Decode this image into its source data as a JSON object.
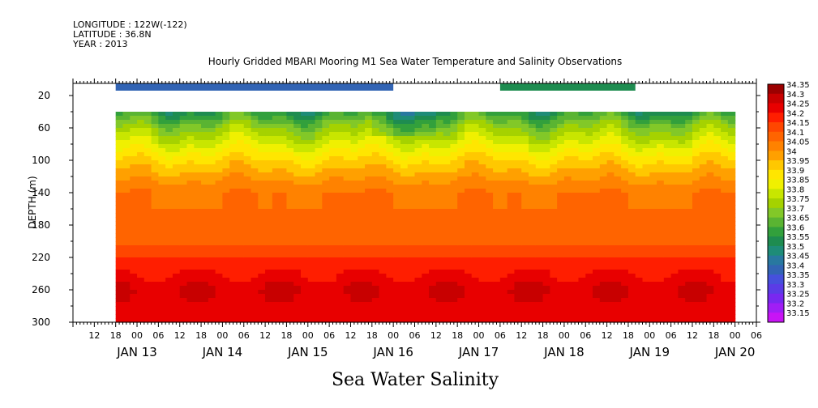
{
  "header": {
    "longitude": "LONGITUDE : 122W(-122)",
    "latitude": "LATITUDE : 36.8N",
    "year": "YEAR : 2013"
  },
  "chart_data": {
    "type": "heatmap",
    "title": "Hourly Gridded MBARI Mooring M1 Sea Water Temperature and Salinity Observations",
    "xlabel": "Sea Water Salinity",
    "ylabel": "DEPTH (m)",
    "yticks": [
      20,
      60,
      100,
      140,
      180,
      220,
      260,
      300
    ],
    "ylim": [
      300,
      5
    ],
    "x_hour_ticks": [
      "12",
      "18",
      "00",
      "06",
      "12",
      "18",
      "00",
      "06",
      "12",
      "18",
      "00",
      "06",
      "12",
      "18",
      "00",
      "06",
      "12",
      "18",
      "00",
      "06",
      "12",
      "18",
      "00",
      "06",
      "12",
      "18",
      "00",
      "06",
      "12",
      "18",
      "00",
      "06"
    ],
    "date_labels": [
      "JAN 13",
      "JAN 14",
      "JAN 15",
      "JAN 16",
      "JAN 17",
      "JAN 18",
      "JAN 19",
      "JAN 20"
    ],
    "colorbar": {
      "levels": [
        "34.35",
        "34.3",
        "34.25",
        "34.2",
        "34.15",
        "34.1",
        "34.05",
        "34",
        "33.95",
        "33.9",
        "33.85",
        "33.8",
        "33.75",
        "33.7",
        "33.65",
        "33.6",
        "33.55",
        "33.5",
        "33.45",
        "33.4",
        "33.35",
        "33.3",
        "33.25",
        "33.2",
        "33.15"
      ],
      "colors": [
        "#9b0000",
        "#c80000",
        "#e80000",
        "#ff1e00",
        "#ff4600",
        "#ff6400",
        "#ff8200",
        "#ffa000",
        "#ffc800",
        "#ffe600",
        "#f0f000",
        "#c8e600",
        "#a5d200",
        "#82c828",
        "#5ab432",
        "#32a03c",
        "#1e8c50",
        "#1e8c78",
        "#2878a0",
        "#3264b4",
        "#4650dc",
        "#5a3ce6",
        "#7828f0",
        "#a01ef5",
        "#c814f5"
      ]
    },
    "surface_bars": [
      {
        "x_range_hours": [
          6,
          84
        ],
        "value": 33.35
      },
      {
        "x_range_hours": [
          114,
          152
        ],
        "value": 33.5
      }
    ],
    "profile": {
      "depth_m": [
        40,
        60,
        80,
        100,
        120,
        140,
        160,
        180,
        200,
        220,
        240,
        260,
        280,
        300
      ],
      "salinity": [
        33.55,
        33.7,
        33.8,
        33.9,
        33.98,
        34.05,
        34.05,
        34.05,
        34.08,
        34.15,
        34.2,
        34.25,
        34.22,
        34.2
      ]
    },
    "data_depth_range_m": [
      40,
      300
    ],
    "data_hour_range": [
      6,
      180
    ]
  }
}
